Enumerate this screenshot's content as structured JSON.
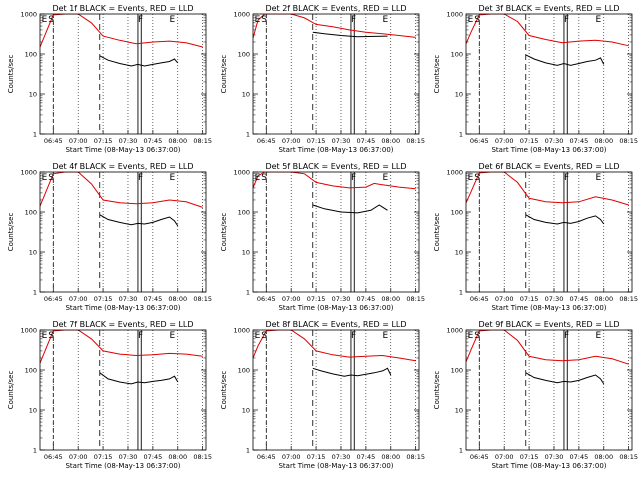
{
  "figure": {
    "colors": {
      "events": "#000000",
      "lld": "#e00000",
      "axes": "#000000",
      "background": "#ffffff"
    }
  },
  "chart_data": [
    {
      "type": "line",
      "title": "Det 1f BLACK = Events, RED = LLD",
      "xlabel": "Start Time (08-May-13 06:37:00)",
      "ylabel": "Counts/sec",
      "yscale": "log",
      "ylim": [
        1,
        1000
      ],
      "xlim": [
        "06:37",
        "08:17"
      ],
      "xticks": [
        "06:45",
        "07:00",
        "07:15",
        "07:30",
        "07:45",
        "08:00",
        "08:15"
      ],
      "yticks": [
        "1",
        "10",
        "100",
        "1000"
      ],
      "markers": [
        "E",
        "S",
        "F",
        "E"
      ],
      "series": [
        {
          "name": "BLACK = Events",
          "color": "#000000",
          "x": [
            "07:13",
            "07:18",
            "07:25",
            "07:32",
            "07:36",
            "07:40",
            "07:45",
            "07:50",
            "07:55",
            "07:58",
            "08:00"
          ],
          "y": [
            90,
            70,
            58,
            50,
            55,
            50,
            55,
            60,
            65,
            75,
            60
          ]
        },
        {
          "name": "RED = LLD",
          "color": "#e00000",
          "x": [
            "06:37",
            "06:40",
            "06:45",
            "06:52",
            "07:00",
            "07:08",
            "07:15",
            "07:25",
            "07:35",
            "07:45",
            "07:55",
            "08:05",
            "08:15"
          ],
          "y": [
            150,
            300,
            950,
            1000,
            1000,
            600,
            280,
            220,
            180,
            200,
            210,
            190,
            150
          ]
        }
      ]
    },
    {
      "type": "line",
      "title": "Det 2f BLACK = Events, RED = LLD",
      "xlabel": "Start Time (08-May-13 06:37:00)",
      "ylabel": "Counts/sec",
      "yscale": "log",
      "ylim": [
        1,
        1000
      ],
      "xlim": [
        "06:37",
        "08:17"
      ],
      "xticks": [
        "06:45",
        "07:00",
        "07:15",
        "07:30",
        "07:45",
        "08:00",
        "08:15"
      ],
      "yticks": [
        "1",
        "10",
        "100",
        "1000"
      ],
      "markers": [
        "E",
        "S",
        "F",
        "E"
      ],
      "series": [
        {
          "name": "BLACK = Events",
          "color": "#000000",
          "x": [
            "07:13",
            "07:20",
            "07:30",
            "07:40",
            "07:50",
            "07:58"
          ],
          "y": [
            350,
            320,
            290,
            270,
            275,
            280
          ]
        },
        {
          "name": "RED = LLD",
          "color": "#e00000",
          "x": [
            "06:37",
            "06:40",
            "06:44",
            "06:48",
            "06:55",
            "07:00",
            "07:08",
            "07:15",
            "07:25",
            "07:35",
            "07:45",
            "07:55",
            "08:05",
            "08:15"
          ],
          "y": [
            250,
            700,
            1000,
            1000,
            1000,
            1000,
            800,
            550,
            480,
            400,
            350,
            320,
            290,
            260
          ]
        }
      ]
    },
    {
      "type": "line",
      "title": "Det 3f BLACK = Events, RED = LLD",
      "xlabel": "Start Time (08-May-13 06:37:00)",
      "ylabel": "Counts/sec",
      "yscale": "log",
      "ylim": [
        1,
        1000
      ],
      "xlim": [
        "06:37",
        "08:17"
      ],
      "xticks": [
        "06:45",
        "07:00",
        "07:15",
        "07:30",
        "07:45",
        "08:00",
        "08:15"
      ],
      "yticks": [
        "1",
        "10",
        "100",
        "1000"
      ],
      "markers": [
        "E",
        "S",
        "F",
        "E"
      ],
      "series": [
        {
          "name": "BLACK = Events",
          "color": "#000000",
          "x": [
            "07:13",
            "07:18",
            "07:25",
            "07:32",
            "07:36",
            "07:40",
            "07:45",
            "07:50",
            "07:55",
            "07:58",
            "08:00"
          ],
          "y": [
            95,
            75,
            60,
            52,
            58,
            52,
            58,
            65,
            70,
            80,
            55
          ]
        },
        {
          "name": "RED = LLD",
          "color": "#e00000",
          "x": [
            "06:37",
            "06:40",
            "06:45",
            "06:52",
            "07:00",
            "07:08",
            "07:15",
            "07:25",
            "07:35",
            "07:45",
            "07:55",
            "08:05",
            "08:15"
          ],
          "y": [
            180,
            350,
            950,
            1000,
            1000,
            650,
            290,
            230,
            190,
            210,
            220,
            200,
            160
          ]
        }
      ]
    },
    {
      "type": "line",
      "title": "Det 4f BLACK = Events, RED = LLD",
      "xlabel": "Start Time (08-May-13 06:37:00)",
      "ylabel": "Counts/sec",
      "yscale": "log",
      "ylim": [
        1,
        1000
      ],
      "xlim": [
        "06:37",
        "08:17"
      ],
      "xticks": [
        "06:45",
        "07:00",
        "07:15",
        "07:30",
        "07:45",
        "08:00",
        "08:15"
      ],
      "yticks": [
        "1",
        "10",
        "100",
        "1000"
      ],
      "markers": [
        "E",
        "S",
        "F",
        "E"
      ],
      "series": [
        {
          "name": "BLACK = Events",
          "color": "#000000",
          "x": [
            "07:13",
            "07:18",
            "07:25",
            "07:32",
            "07:36",
            "07:40",
            "07:45",
            "07:50",
            "07:55",
            "07:58",
            "08:00"
          ],
          "y": [
            85,
            65,
            55,
            48,
            52,
            50,
            55,
            65,
            75,
            60,
            45
          ]
        },
        {
          "name": "RED = LLD",
          "color": "#e00000",
          "x": [
            "06:37",
            "06:40",
            "06:45",
            "06:52",
            "07:00",
            "07:08",
            "07:15",
            "07:25",
            "07:35",
            "07:45",
            "07:55",
            "08:05",
            "08:15"
          ],
          "y": [
            140,
            280,
            900,
            1000,
            1000,
            500,
            200,
            170,
            160,
            170,
            200,
            180,
            130
          ]
        }
      ]
    },
    {
      "type": "line",
      "title": "Det 5f BLACK = Events, RED = LLD",
      "xlabel": "Start Time (08-May-13 06:37:00)",
      "ylabel": "Counts/sec",
      "yscale": "log",
      "ylim": [
        1,
        1000
      ],
      "xlim": [
        "06:37",
        "08:17"
      ],
      "xticks": [
        "06:45",
        "07:00",
        "07:15",
        "07:30",
        "07:45",
        "08:00",
        "08:15"
      ],
      "yticks": [
        "1",
        "10",
        "100",
        "1000"
      ],
      "markers": [
        "E",
        "S",
        "F",
        "E"
      ],
      "series": [
        {
          "name": "BLACK = Events",
          "color": "#000000",
          "x": [
            "07:13",
            "07:20",
            "07:30",
            "07:40",
            "07:48",
            "07:53",
            "07:58"
          ],
          "y": [
            150,
            120,
            100,
            95,
            110,
            150,
            110
          ]
        },
        {
          "name": "RED = LLD",
          "color": "#e00000",
          "x": [
            "06:37",
            "06:40",
            "06:44",
            "06:50",
            "07:00",
            "07:08",
            "07:15",
            "07:25",
            "07:35",
            "07:45",
            "07:50",
            "07:55",
            "08:05",
            "08:15"
          ],
          "y": [
            400,
            800,
            1000,
            1000,
            1000,
            900,
            550,
            450,
            400,
            420,
            520,
            480,
            420,
            380
          ]
        }
      ]
    },
    {
      "type": "line",
      "title": "Det 6f BLACK = Events, RED = LLD",
      "xlabel": "Start Time (08-May-13 06:37:00)",
      "ylabel": "Counts/sec",
      "yscale": "log",
      "ylim": [
        1,
        1000
      ],
      "xlim": [
        "06:37",
        "08:17"
      ],
      "xticks": [
        "06:45",
        "07:00",
        "07:15",
        "07:30",
        "07:45",
        "08:00",
        "08:15"
      ],
      "yticks": [
        "1",
        "10",
        "100",
        "1000"
      ],
      "markers": [
        "E",
        "S",
        "F",
        "E"
      ],
      "series": [
        {
          "name": "BLACK = Events",
          "color": "#000000",
          "x": [
            "07:13",
            "07:18",
            "07:25",
            "07:32",
            "07:36",
            "07:40",
            "07:45",
            "07:50",
            "07:55",
            "07:58",
            "08:00"
          ],
          "y": [
            85,
            65,
            55,
            50,
            55,
            52,
            58,
            70,
            80,
            65,
            50
          ]
        },
        {
          "name": "RED = LLD",
          "color": "#e00000",
          "x": [
            "06:37",
            "06:40",
            "06:45",
            "06:52",
            "07:00",
            "07:08",
            "07:15",
            "07:25",
            "07:35",
            "07:45",
            "07:55",
            "08:05",
            "08:15"
          ],
          "y": [
            170,
            320,
            950,
            1000,
            1000,
            550,
            220,
            180,
            170,
            180,
            240,
            200,
            150
          ]
        }
      ]
    },
    {
      "type": "line",
      "title": "Det 7f BLACK = Events, RED = LLD",
      "xlabel": "Start Time (08-May-13 06:37:00)",
      "ylabel": "Counts/sec",
      "yscale": "log",
      "ylim": [
        1,
        1000
      ],
      "xlim": [
        "06:37",
        "08:17"
      ],
      "xticks": [
        "06:45",
        "07:00",
        "07:15",
        "07:30",
        "07:45",
        "08:00",
        "08:15"
      ],
      "yticks": [
        "1",
        "10",
        "100",
        "1000"
      ],
      "markers": [
        "E",
        "S",
        "F",
        "E"
      ],
      "series": [
        {
          "name": "BLACK = Events",
          "color": "#000000",
          "x": [
            "07:13",
            "07:18",
            "07:25",
            "07:32",
            "07:36",
            "07:40",
            "07:45",
            "07:50",
            "07:55",
            "07:58",
            "08:00"
          ],
          "y": [
            85,
            60,
            50,
            45,
            50,
            48,
            52,
            55,
            60,
            70,
            50
          ]
        },
        {
          "name": "RED = LLD",
          "color": "#e00000",
          "x": [
            "06:37",
            "06:40",
            "06:45",
            "06:52",
            "07:00",
            "07:08",
            "07:15",
            "07:25",
            "07:35",
            "07:45",
            "07:55",
            "08:05",
            "08:15"
          ],
          "y": [
            150,
            300,
            950,
            1000,
            1000,
            600,
            300,
            250,
            230,
            240,
            260,
            250,
            220
          ]
        }
      ]
    },
    {
      "type": "line",
      "title": "Det 8f BLACK = Events, RED = LLD",
      "xlabel": "Start Time (08-May-13 06:37:00)",
      "ylabel": "Counts/sec",
      "yscale": "log",
      "ylim": [
        1,
        1000
      ],
      "xlim": [
        "06:37",
        "08:17"
      ],
      "xticks": [
        "06:45",
        "07:00",
        "07:15",
        "07:30",
        "07:45",
        "08:00",
        "08:15"
      ],
      "yticks": [
        "1",
        "10",
        "100",
        "1000"
      ],
      "markers": [
        "E",
        "S",
        "F",
        "E"
      ],
      "series": [
        {
          "name": "BLACK = Events",
          "color": "#000000",
          "x": [
            "07:13",
            "07:18",
            "07:25",
            "07:32",
            "07:36",
            "07:40",
            "07:45",
            "07:50",
            "07:55",
            "07:58",
            "08:00"
          ],
          "y": [
            110,
            95,
            80,
            70,
            75,
            72,
            78,
            85,
            95,
            110,
            75
          ]
        },
        {
          "name": "RED = LLD",
          "color": "#e00000",
          "x": [
            "06:37",
            "06:40",
            "06:45",
            "06:52",
            "07:00",
            "07:08",
            "07:15",
            "07:25",
            "07:35",
            "07:45",
            "07:55",
            "08:05",
            "08:15"
          ],
          "y": [
            200,
            400,
            950,
            1000,
            1000,
            600,
            300,
            240,
            210,
            220,
            230,
            200,
            170
          ]
        }
      ]
    },
    {
      "type": "line",
      "title": "Det 9f BLACK = Events, RED = LLD",
      "xlabel": "Start Time (08-May-13 06:37:00)",
      "ylabel": "Counts/sec",
      "yscale": "log",
      "ylim": [
        1,
        1000
      ],
      "xlim": [
        "06:37",
        "08:17"
      ],
      "xticks": [
        "06:45",
        "07:00",
        "07:15",
        "07:30",
        "07:45",
        "08:00",
        "08:15"
      ],
      "yticks": [
        "1",
        "10",
        "100",
        "1000"
      ],
      "markers": [
        "E",
        "S",
        "F",
        "E"
      ],
      "series": [
        {
          "name": "BLACK = Events",
          "color": "#000000",
          "x": [
            "07:13",
            "07:18",
            "07:25",
            "07:32",
            "07:36",
            "07:40",
            "07:45",
            "07:50",
            "07:55",
            "07:58",
            "08:00"
          ],
          "y": [
            85,
            65,
            55,
            48,
            52,
            50,
            55,
            65,
            75,
            60,
            45
          ]
        },
        {
          "name": "RED = LLD",
          "color": "#e00000",
          "x": [
            "06:37",
            "06:40",
            "06:45",
            "06:52",
            "07:00",
            "07:08",
            "07:15",
            "07:25",
            "07:35",
            "07:45",
            "07:55",
            "08:05",
            "08:15"
          ],
          "y": [
            160,
            320,
            950,
            1000,
            1000,
            550,
            220,
            180,
            170,
            180,
            220,
            190,
            140
          ]
        }
      ]
    }
  ]
}
